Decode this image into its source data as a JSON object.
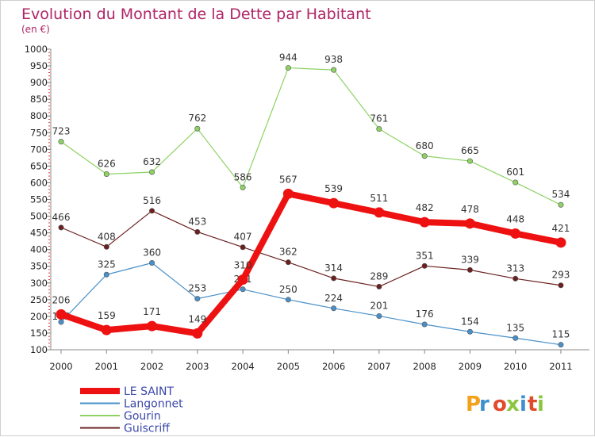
{
  "chart_data": {
    "type": "line",
    "title": "Evolution du Montant de la Dette par Habitant",
    "subtitle": "(en €)",
    "xlabel": "",
    "ylabel": "",
    "x": [
      "2000",
      "2001",
      "2002",
      "2003",
      "2004",
      "2005",
      "2006",
      "2007",
      "2008",
      "2009",
      "2010",
      "2011"
    ],
    "ylim": [
      100,
      1000
    ],
    "yticks": [
      100,
      150,
      200,
      250,
      300,
      350,
      400,
      450,
      500,
      550,
      600,
      650,
      700,
      750,
      800,
      850,
      900,
      950,
      1000
    ],
    "grid": false,
    "legend_position": "bottom-left",
    "series": [
      {
        "name": "Langonnet",
        "color": "#4a90c8",
        "values": [
          183,
          325,
          360,
          253,
          281,
          250,
          224,
          201,
          176,
          154,
          135,
          115
        ]
      },
      {
        "name": "Gourin",
        "color": "#8ed263",
        "values": [
          723,
          626,
          632,
          762,
          586,
          944,
          938,
          761,
          680,
          665,
          601,
          534
        ]
      },
      {
        "name": "Guiscriff",
        "color": "#6b2020",
        "values": [
          466,
          408,
          516,
          453,
          407,
          362,
          314,
          289,
          351,
          339,
          313,
          293
        ]
      },
      {
        "name": "LE SAINT",
        "color": "#ee1111",
        "values": [
          206,
          159,
          171,
          149,
          310,
          567,
          539,
          511,
          482,
          478,
          448,
          421
        ]
      }
    ]
  },
  "logo": {
    "text": "Proxiti"
  }
}
